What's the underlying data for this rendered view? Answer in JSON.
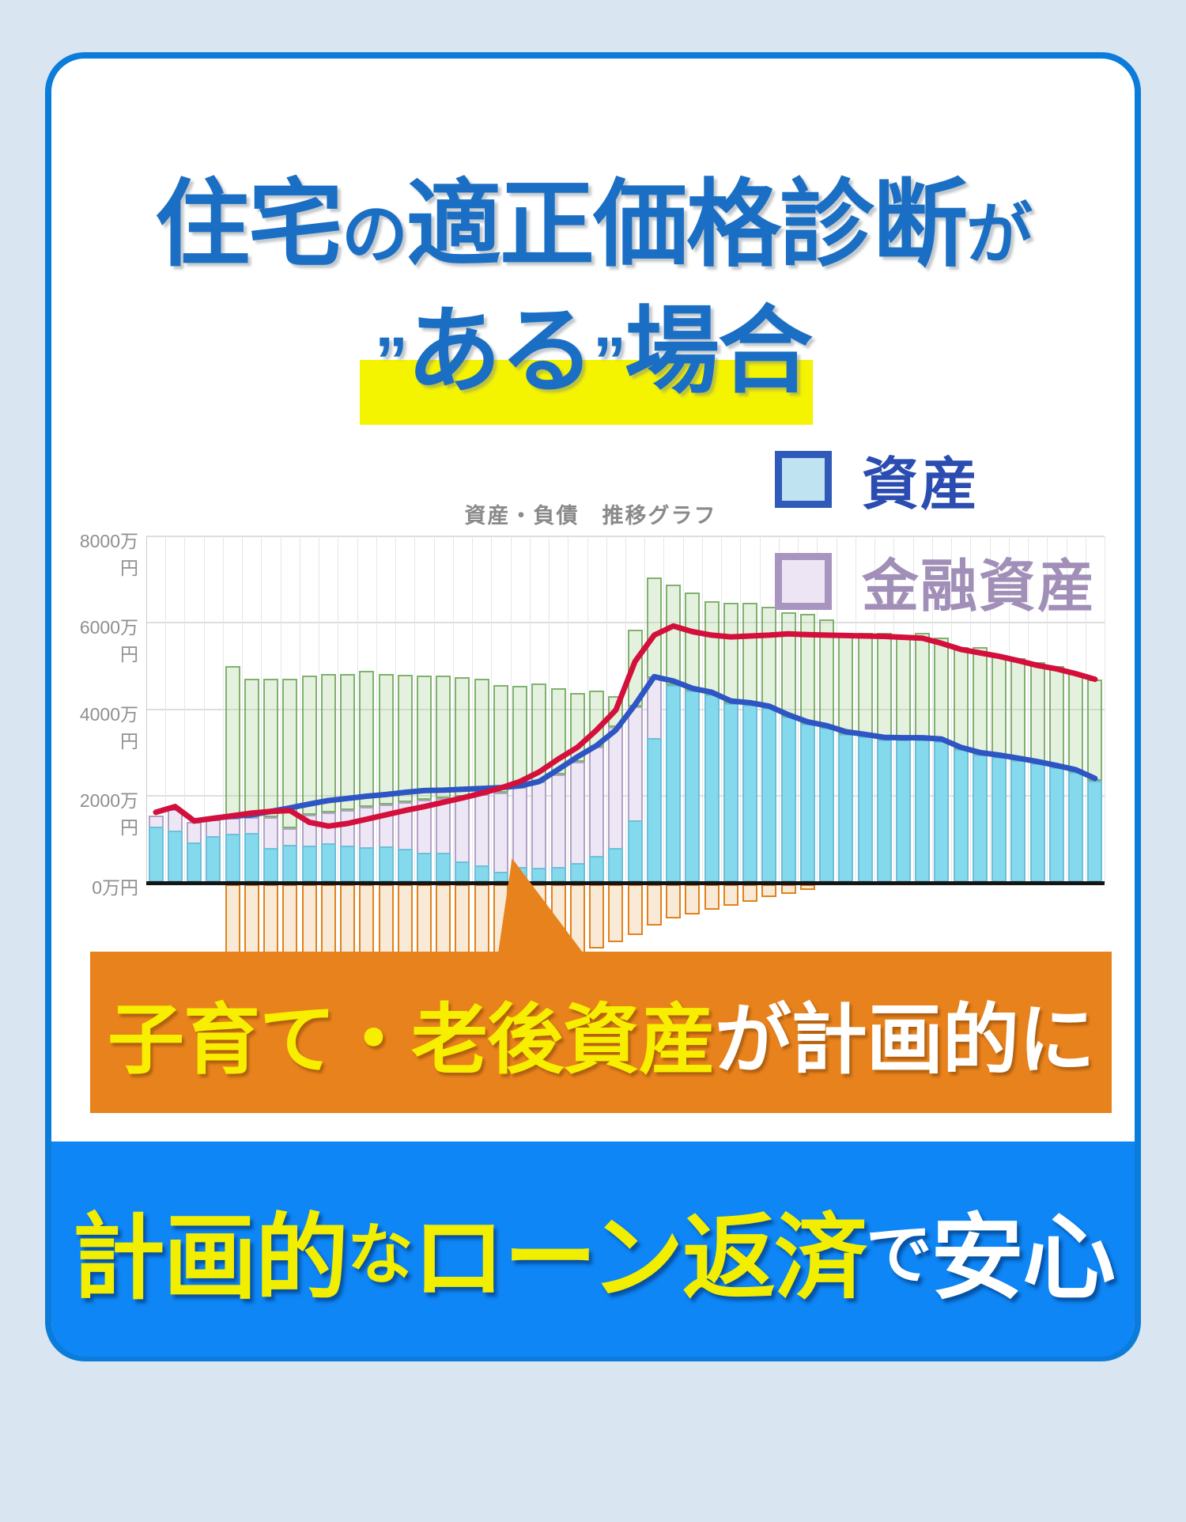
{
  "title": {
    "l1a": "住宅",
    "l1b": "の",
    "l1c": "適正価格診断",
    "l1d": "が",
    "l2_open": "”",
    "l2b": "ある",
    "l2_close": "”",
    "l2d": "場合"
  },
  "legend": {
    "items": {
      "asset": {
        "label": "資産",
        "fill": "#bfe3f0",
        "border": "#2f5ab9"
      },
      "financial": {
        "label": "金融資産",
        "fill": "#ede5f4",
        "border": "#a795bf"
      }
    }
  },
  "note_banner": {
    "part_yellow": "子育て・老後資産",
    "part_white": "が計画的に",
    "background": "#e8821c"
  },
  "bottom_banner": {
    "p1": "計画的",
    "p2": "な",
    "p3": "ローン返済",
    "p4": "で",
    "p5": "安心",
    "background": "#0e86f5"
  },
  "colors": {
    "title_blue": "#1a6fc4",
    "highlight_yellow": "#f4f400",
    "card_border_blue": "#0b7cd9",
    "red_line": "#d40f3c",
    "blue_line": "#2e55c4"
  },
  "chart_data": {
    "type": "combo-bar-line",
    "title": "資産・負債　推移グラフ",
    "n_points": 50,
    "x_tick_labels_visible": false,
    "grid": true,
    "y_axis": {
      "unit": "万円",
      "ticks": [
        {
          "label": "8000万円",
          "value": 8000
        },
        {
          "label": "6000万円",
          "value": 6000
        },
        {
          "label": "4000万円",
          "value": 4000
        },
        {
          "label": "2000万円",
          "value": 2000
        },
        {
          "label": "0万円",
          "value": 0
        }
      ]
    },
    "series": [
      {
        "id": "green_bars",
        "type": "bar-stacked-top",
        "legend_label": null,
        "top_values": [
          null,
          null,
          null,
          null,
          4990,
          4710,
          4710,
          4710,
          4770,
          4820,
          4820,
          4890,
          4820,
          4800,
          4770,
          4770,
          4740,
          4710,
          4550,
          4530,
          4590,
          4490,
          4370,
          4430,
          4310,
          5830,
          7050,
          6870,
          6690,
          6500,
          6450,
          6450,
          6360,
          6230,
          6210,
          6080,
          5770,
          5760,
          5770,
          5710,
          5760,
          5650,
          5440,
          5430,
          5260,
          5170,
          5080,
          4990,
          4830,
          4680
        ]
      },
      {
        "id": "financial_bars",
        "type": "bar",
        "legend_label": "金融資産",
        "values": [
          1550,
          1690,
          1390,
          1450,
          1480,
          1510,
          1510,
          1260,
          1560,
          1620,
          1680,
          1740,
          1800,
          1850,
          1900,
          1950,
          1990,
          2030,
          2080,
          2200,
          2320,
          2500,
          2780,
          3140,
          3590,
          4070,
          4730,
          4450,
          4330,
          4240,
          4040,
          4000,
          3920,
          3720,
          3560,
          3470,
          3330,
          3270,
          3200,
          3190,
          3190,
          3160,
          2970,
          2850,
          2790,
          2720,
          2640,
          2550,
          2450,
          2250
        ]
      },
      {
        "id": "asset_bars",
        "type": "bar",
        "legend_label": "資産",
        "values": [
          1280,
          1200,
          930,
          1060,
          1115,
          1150,
          800,
          875,
          850,
          900,
          850,
          820,
          840,
          780,
          690,
          690,
          475,
          385,
          240,
          350,
          330,
          350,
          440,
          620,
          800,
          1440,
          3340,
          4550,
          4430,
          4340,
          4140,
          4100,
          4020,
          3820,
          3660,
          3570,
          3430,
          3370,
          3300,
          3290,
          3290,
          3260,
          3070,
          2950,
          2890,
          2820,
          2740,
          2650,
          2550,
          2350
        ]
      },
      {
        "id": "orange_bars",
        "type": "bar-negative",
        "legend_label": null,
        "values": [
          0,
          0,
          0,
          0,
          -2600,
          -2600,
          -2600,
          -2600,
          -2600,
          -2600,
          -2600,
          -2600,
          -2600,
          -2600,
          -2600,
          -2600,
          -2600,
          -2600,
          -2600,
          -2600,
          -2600,
          -2600,
          -1900,
          -1480,
          -1350,
          -1170,
          -950,
          -800,
          -700,
          -600,
          -500,
          -420,
          -300,
          -220,
          -130,
          0,
          0,
          0,
          0,
          0,
          0,
          0,
          0,
          0,
          0,
          0,
          0,
          0,
          0,
          0
        ]
      },
      {
        "id": "red_line",
        "type": "line",
        "color": "#d40f3c",
        "values": [
          1620,
          1750,
          1420,
          1480,
          1540,
          1600,
          1640,
          1660,
          1390,
          1300,
          1360,
          1460,
          1560,
          1660,
          1750,
          1850,
          1950,
          2060,
          2180,
          2330,
          2550,
          2850,
          3120,
          3520,
          3980,
          5100,
          5710,
          5920,
          5790,
          5710,
          5670,
          5690,
          5710,
          5740,
          5720,
          5710,
          5700,
          5690,
          5680,
          5660,
          5640,
          5520,
          5380,
          5300,
          5220,
          5120,
          5010,
          4930,
          4820,
          4690
        ]
      },
      {
        "id": "blue_line",
        "type": "line",
        "color": "#2e55c4",
        "values": [
          1620,
          1750,
          1420,
          1480,
          1530,
          1560,
          1640,
          1720,
          1810,
          1890,
          1940,
          1990,
          2030,
          2080,
          2120,
          2130,
          2150,
          2170,
          2190,
          2230,
          2330,
          2610,
          2900,
          3160,
          3520,
          4100,
          4750,
          4650,
          4480,
          4390,
          4190,
          4150,
          4070,
          3870,
          3710,
          3620,
          3480,
          3420,
          3350,
          3340,
          3340,
          3310,
          3120,
          3000,
          2940,
          2870,
          2790,
          2700,
          2600,
          2400
        ]
      }
    ]
  }
}
